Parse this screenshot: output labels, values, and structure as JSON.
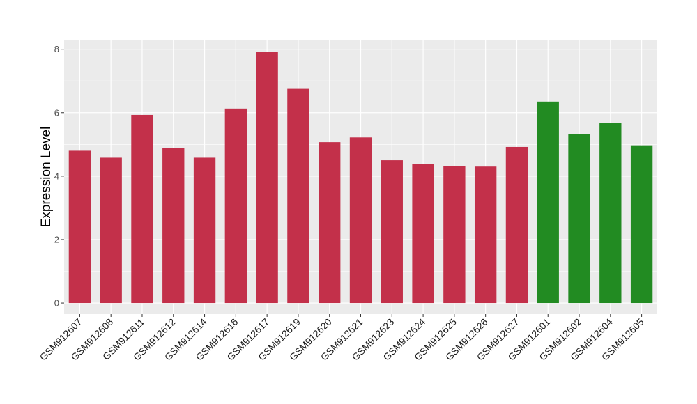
{
  "chart_data": {
    "type": "bar",
    "ylabel": "Expression Level",
    "ylim": [
      -0.35,
      8.3
    ],
    "yticks": [
      0,
      2,
      4,
      6,
      8
    ],
    "grid": true,
    "categories": [
      "GSM912607",
      "GSM912608",
      "GSM912611",
      "GSM912612",
      "GSM912614",
      "GSM912616",
      "GSM912617",
      "GSM912619",
      "GSM912620",
      "GSM912621",
      "GSM912623",
      "GSM912624",
      "GSM912625",
      "GSM912626",
      "GSM912627",
      "GSM912601",
      "GSM912602",
      "GSM912604",
      "GSM912605"
    ],
    "values": [
      4.8,
      4.58,
      5.93,
      4.88,
      4.58,
      6.13,
      7.92,
      6.75,
      5.07,
      5.22,
      4.5,
      4.38,
      4.32,
      4.3,
      4.92,
      6.35,
      5.32,
      5.67,
      4.97
    ],
    "bar_colors": [
      "#C3304A",
      "#C3304A",
      "#C3304A",
      "#C3304A",
      "#C3304A",
      "#C3304A",
      "#C3304A",
      "#C3304A",
      "#C3304A",
      "#C3304A",
      "#C3304A",
      "#C3304A",
      "#C3304A",
      "#C3304A",
      "#C3304A",
      "#228B22",
      "#228B22",
      "#228B22",
      "#228B22"
    ]
  },
  "colors": {
    "panel_background": "#EBEBEB",
    "gridline": "#FFFFFF",
    "tick": "#333333"
  }
}
